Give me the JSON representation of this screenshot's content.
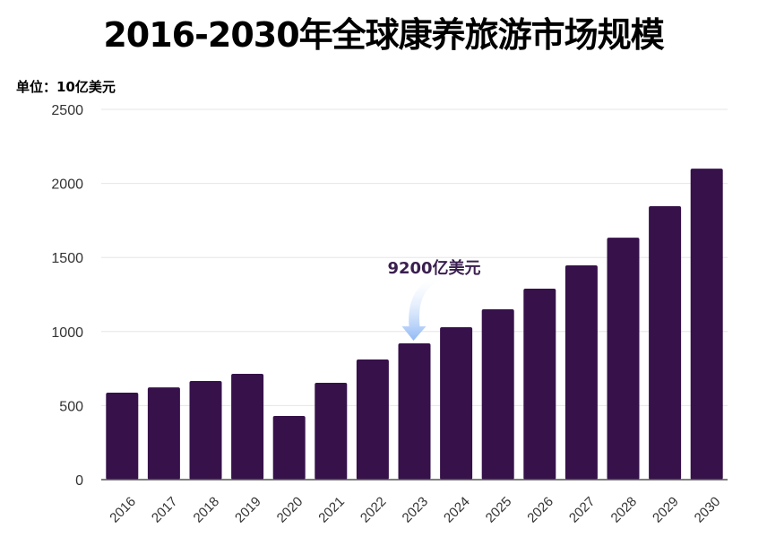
{
  "chart_data": {
    "type": "bar",
    "title": "2016-2030年全球康养旅游市场规模",
    "unit_label": "单位：10亿美元",
    "xlabel": "",
    "ylabel": "",
    "ylim": [
      0,
      2500
    ],
    "yticks": [
      "0",
      "500",
      "1000",
      "1500",
      "2000",
      "2500"
    ],
    "grid": true,
    "bar_color": "#36114a",
    "categories": [
      "2016",
      "2017",
      "2018",
      "2019",
      "2020",
      "2021",
      "2022",
      "2023",
      "2024",
      "2025",
      "2026",
      "2027",
      "2028",
      "2029",
      "2030"
    ],
    "values": [
      587,
      623,
      666,
      714,
      430,
      654,
      811,
      920,
      1029,
      1150,
      1289,
      1447,
      1634,
      1846,
      2100
    ],
    "annotation": {
      "text": "9200亿美元",
      "target": "2023",
      "arrow_color": "#8fb8f5"
    }
  }
}
